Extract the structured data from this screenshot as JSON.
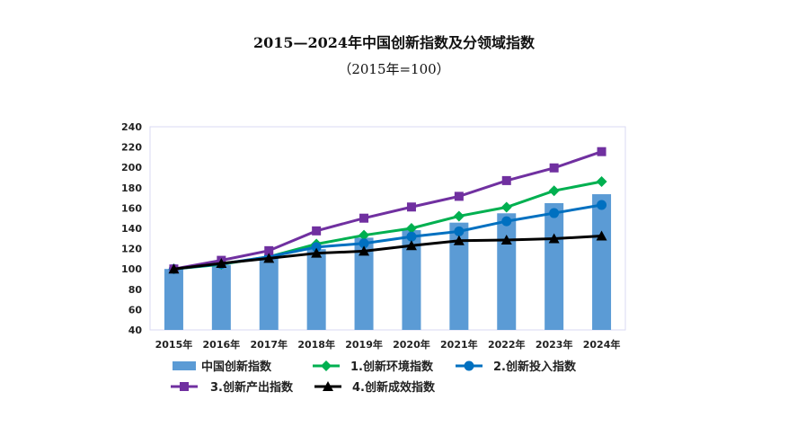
{
  "title": "2015—2024年中国创新指数及分领域指数",
  "subtitle": "（2015年=100）",
  "chart_data": {
    "type": "bar+line",
    "title": "2015—2024年中国创新指数及分领域指数",
    "subtitle": "（2015年=100）",
    "xlabel": "",
    "ylabel": "",
    "categories": [
      "2015年",
      "2016年",
      "2017年",
      "2018年",
      "2019年",
      "2020年",
      "2021年",
      "2022年",
      "2023年",
      "2024年"
    ],
    "ylim": [
      40,
      240
    ],
    "yticks": [
      40,
      60,
      80,
      100,
      120,
      140,
      160,
      180,
      200,
      220,
      240
    ],
    "grid": false,
    "legend_position": "bottom",
    "series": [
      {
        "name": "中国创新指数",
        "type": "bar",
        "color": "#5b9bd5",
        "marker": "none",
        "values": [
          100,
          104.0,
          111.0,
          119.5,
          130.8,
          138.2,
          145.6,
          154.8,
          164.8,
          173.6
        ]
      },
      {
        "name": "1.创新环境指数",
        "type": "line",
        "color": "#00b050",
        "marker": "diamond",
        "values": [
          100,
          104.5,
          112.0,
          124.5,
          133.2,
          140.0,
          152.0,
          160.8,
          177.0,
          186.0
        ]
      },
      {
        "name": "2.创新投入指数",
        "type": "line",
        "color": "#0070c0",
        "marker": "circle",
        "values": [
          100,
          105.0,
          112.0,
          121.5,
          125.2,
          131.8,
          137.0,
          147.0,
          155.0,
          163.0
        ]
      },
      {
        "name": "3.创新产出指数",
        "type": "line",
        "color": "#7030a0",
        "marker": "square",
        "values": [
          100,
          108.5,
          118.0,
          137.5,
          150.0,
          161.0,
          171.5,
          187.0,
          199.5,
          215.5
        ]
      },
      {
        "name": "4.创新成效指数",
        "type": "line",
        "color": "#000000",
        "marker": "triangle",
        "values": [
          100,
          105.5,
          110.5,
          115.5,
          117.5,
          123.0,
          127.8,
          128.5,
          129.8,
          132.5
        ]
      }
    ]
  },
  "legend": {
    "items": [
      {
        "label": "中国创新指数"
      },
      {
        "label": "1.创新环境指数"
      },
      {
        "label": "2.创新投入指数"
      },
      {
        "label": "3.创新产出指数"
      },
      {
        "label": "4.创新成效指数"
      }
    ]
  }
}
